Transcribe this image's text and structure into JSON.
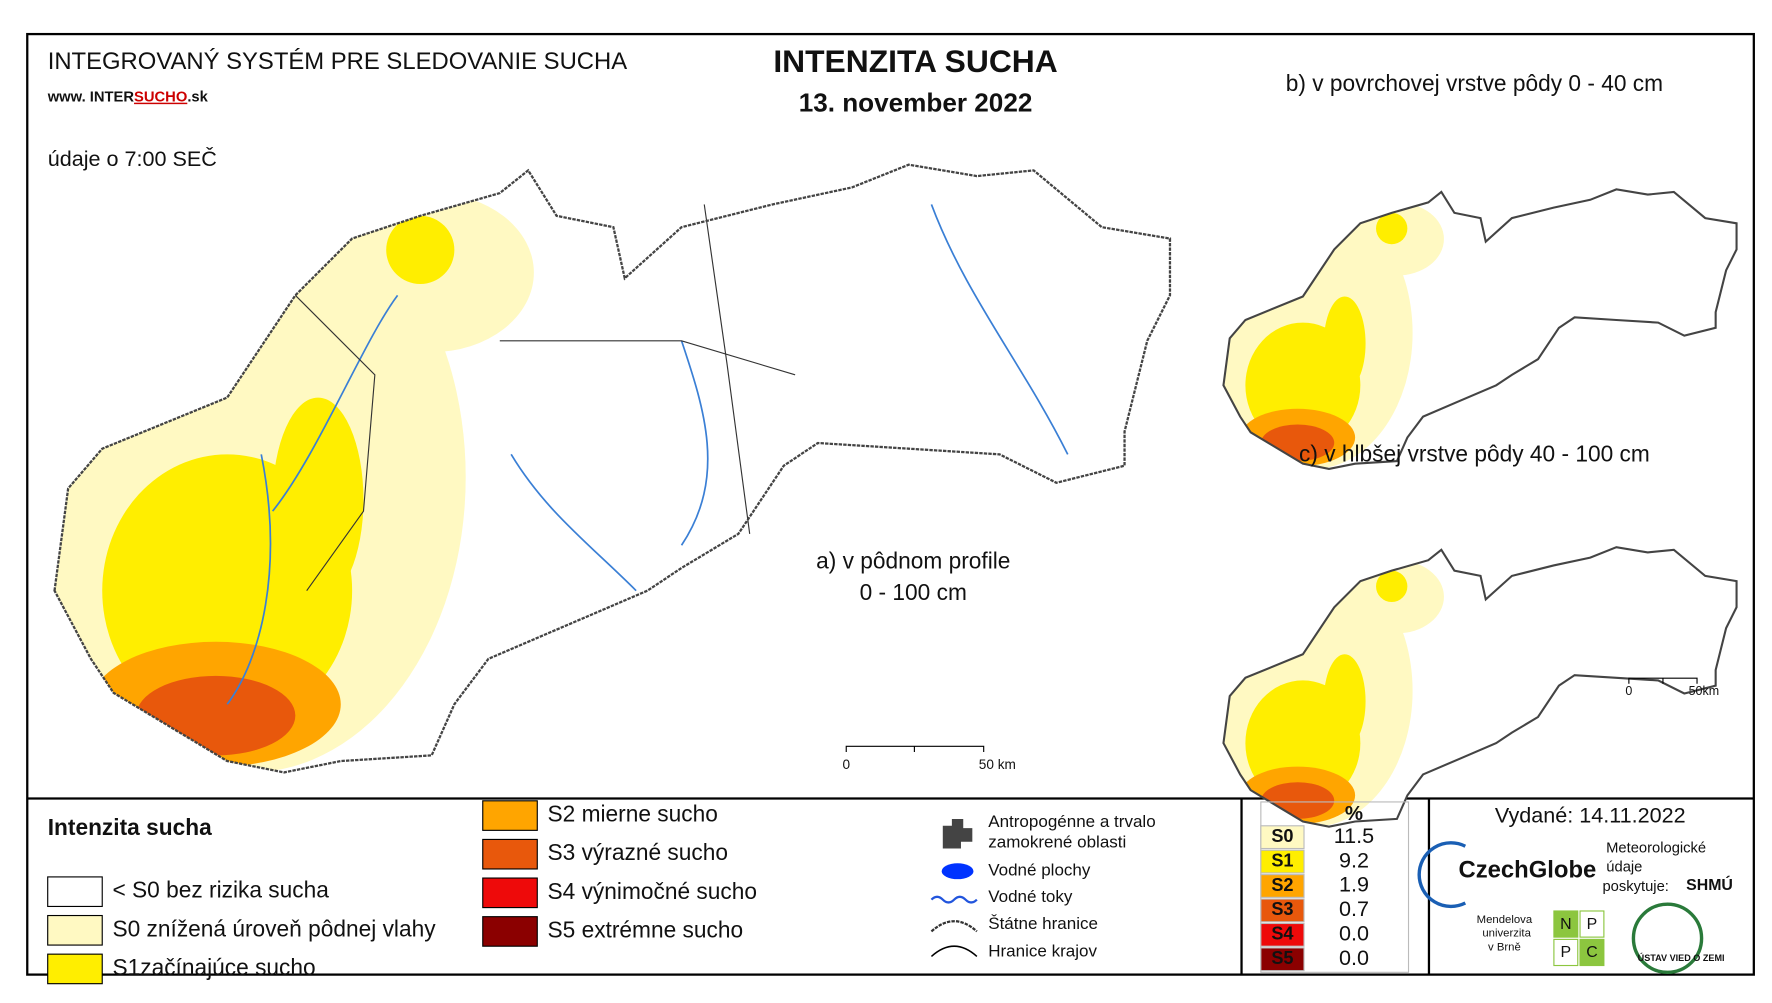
{
  "header": {
    "system": "INTEGROVANÝ SYSTÉM PRE SLEDOVANIE SUCHA",
    "web_prefix": "www. INTER",
    "web_highlight": "SUCHO",
    "web_suffix": ".sk",
    "time_note": "údaje o 7:00 SEČ",
    "title": "INTENZITA SUCHA",
    "date": "13. november 2022"
  },
  "maps": {
    "a_line1": "a) v pôdnom profile",
    "a_line2": "0 - 100 cm",
    "b": "b) v povrchovej vrstve pôdy 0 - 40 cm",
    "c": "c) v hlbšej vrstve pôdy 40 - 100 cm"
  },
  "scale_bars": [
    {
      "start": "0",
      "end": "50 km"
    },
    {
      "start": "0",
      "end": "50km"
    }
  ],
  "legend": {
    "title": "Intenzita sucha",
    "classes": [
      {
        "label": "< S0 bez rizika sucha",
        "color": "#ffffff"
      },
      {
        "label": "S0 znížená úroveň pôdnej vlahy",
        "color": "#fff9c2"
      },
      {
        "label": "S1začínajúce sucho",
        "color": "#ffee00"
      },
      {
        "label": "S2 mierne sucho",
        "color": "#ffa500"
      },
      {
        "label": "S3 výrazné sucho",
        "color": "#e8580c"
      },
      {
        "label": "S4 výnimočné sucho",
        "color": "#ee0a0a"
      },
      {
        "label": "S5 extrémne sucho",
        "color": "#8b0000"
      }
    ]
  },
  "symbols": {
    "urban_1": "Antropogénne a trvalo",
    "urban_2": "zamokrené oblasti",
    "water": "Vodné plochy",
    "rivers": "Vodné toky",
    "border": "Štátne hranice",
    "regions": "Hranice krajov"
  },
  "stats": {
    "header": "%",
    "rows": [
      {
        "class": "S0",
        "value": "11.5",
        "color": "#fff9c2"
      },
      {
        "class": "S1",
        "value": "9.2",
        "color": "#ffee00"
      },
      {
        "class": "S2",
        "value": "1.9",
        "color": "#ffa500"
      },
      {
        "class": "S3",
        "value": "0.7",
        "color": "#e8580c"
      },
      {
        "class": "S4",
        "value": "0.0",
        "color": "#ee0a0a"
      },
      {
        "class": "S5",
        "value": "0.0",
        "color": "#8b0000"
      }
    ]
  },
  "issued": "Vydané: 14.11.2022",
  "logos": {
    "czechglobe": "CzechGlobe",
    "meteo_1": "Meteorologické",
    "meteo_2": "údaje",
    "meteo_3": "poskytuje:",
    "shmu": "SHMÚ",
    "mendel_1": "Mendelova",
    "mendel_2": "univerzita",
    "mendel_3": "v Brně",
    "npp": [
      "N",
      "P",
      "P",
      "C"
    ],
    "uvz": "ÚSTAV VIED O ZEMI"
  }
}
